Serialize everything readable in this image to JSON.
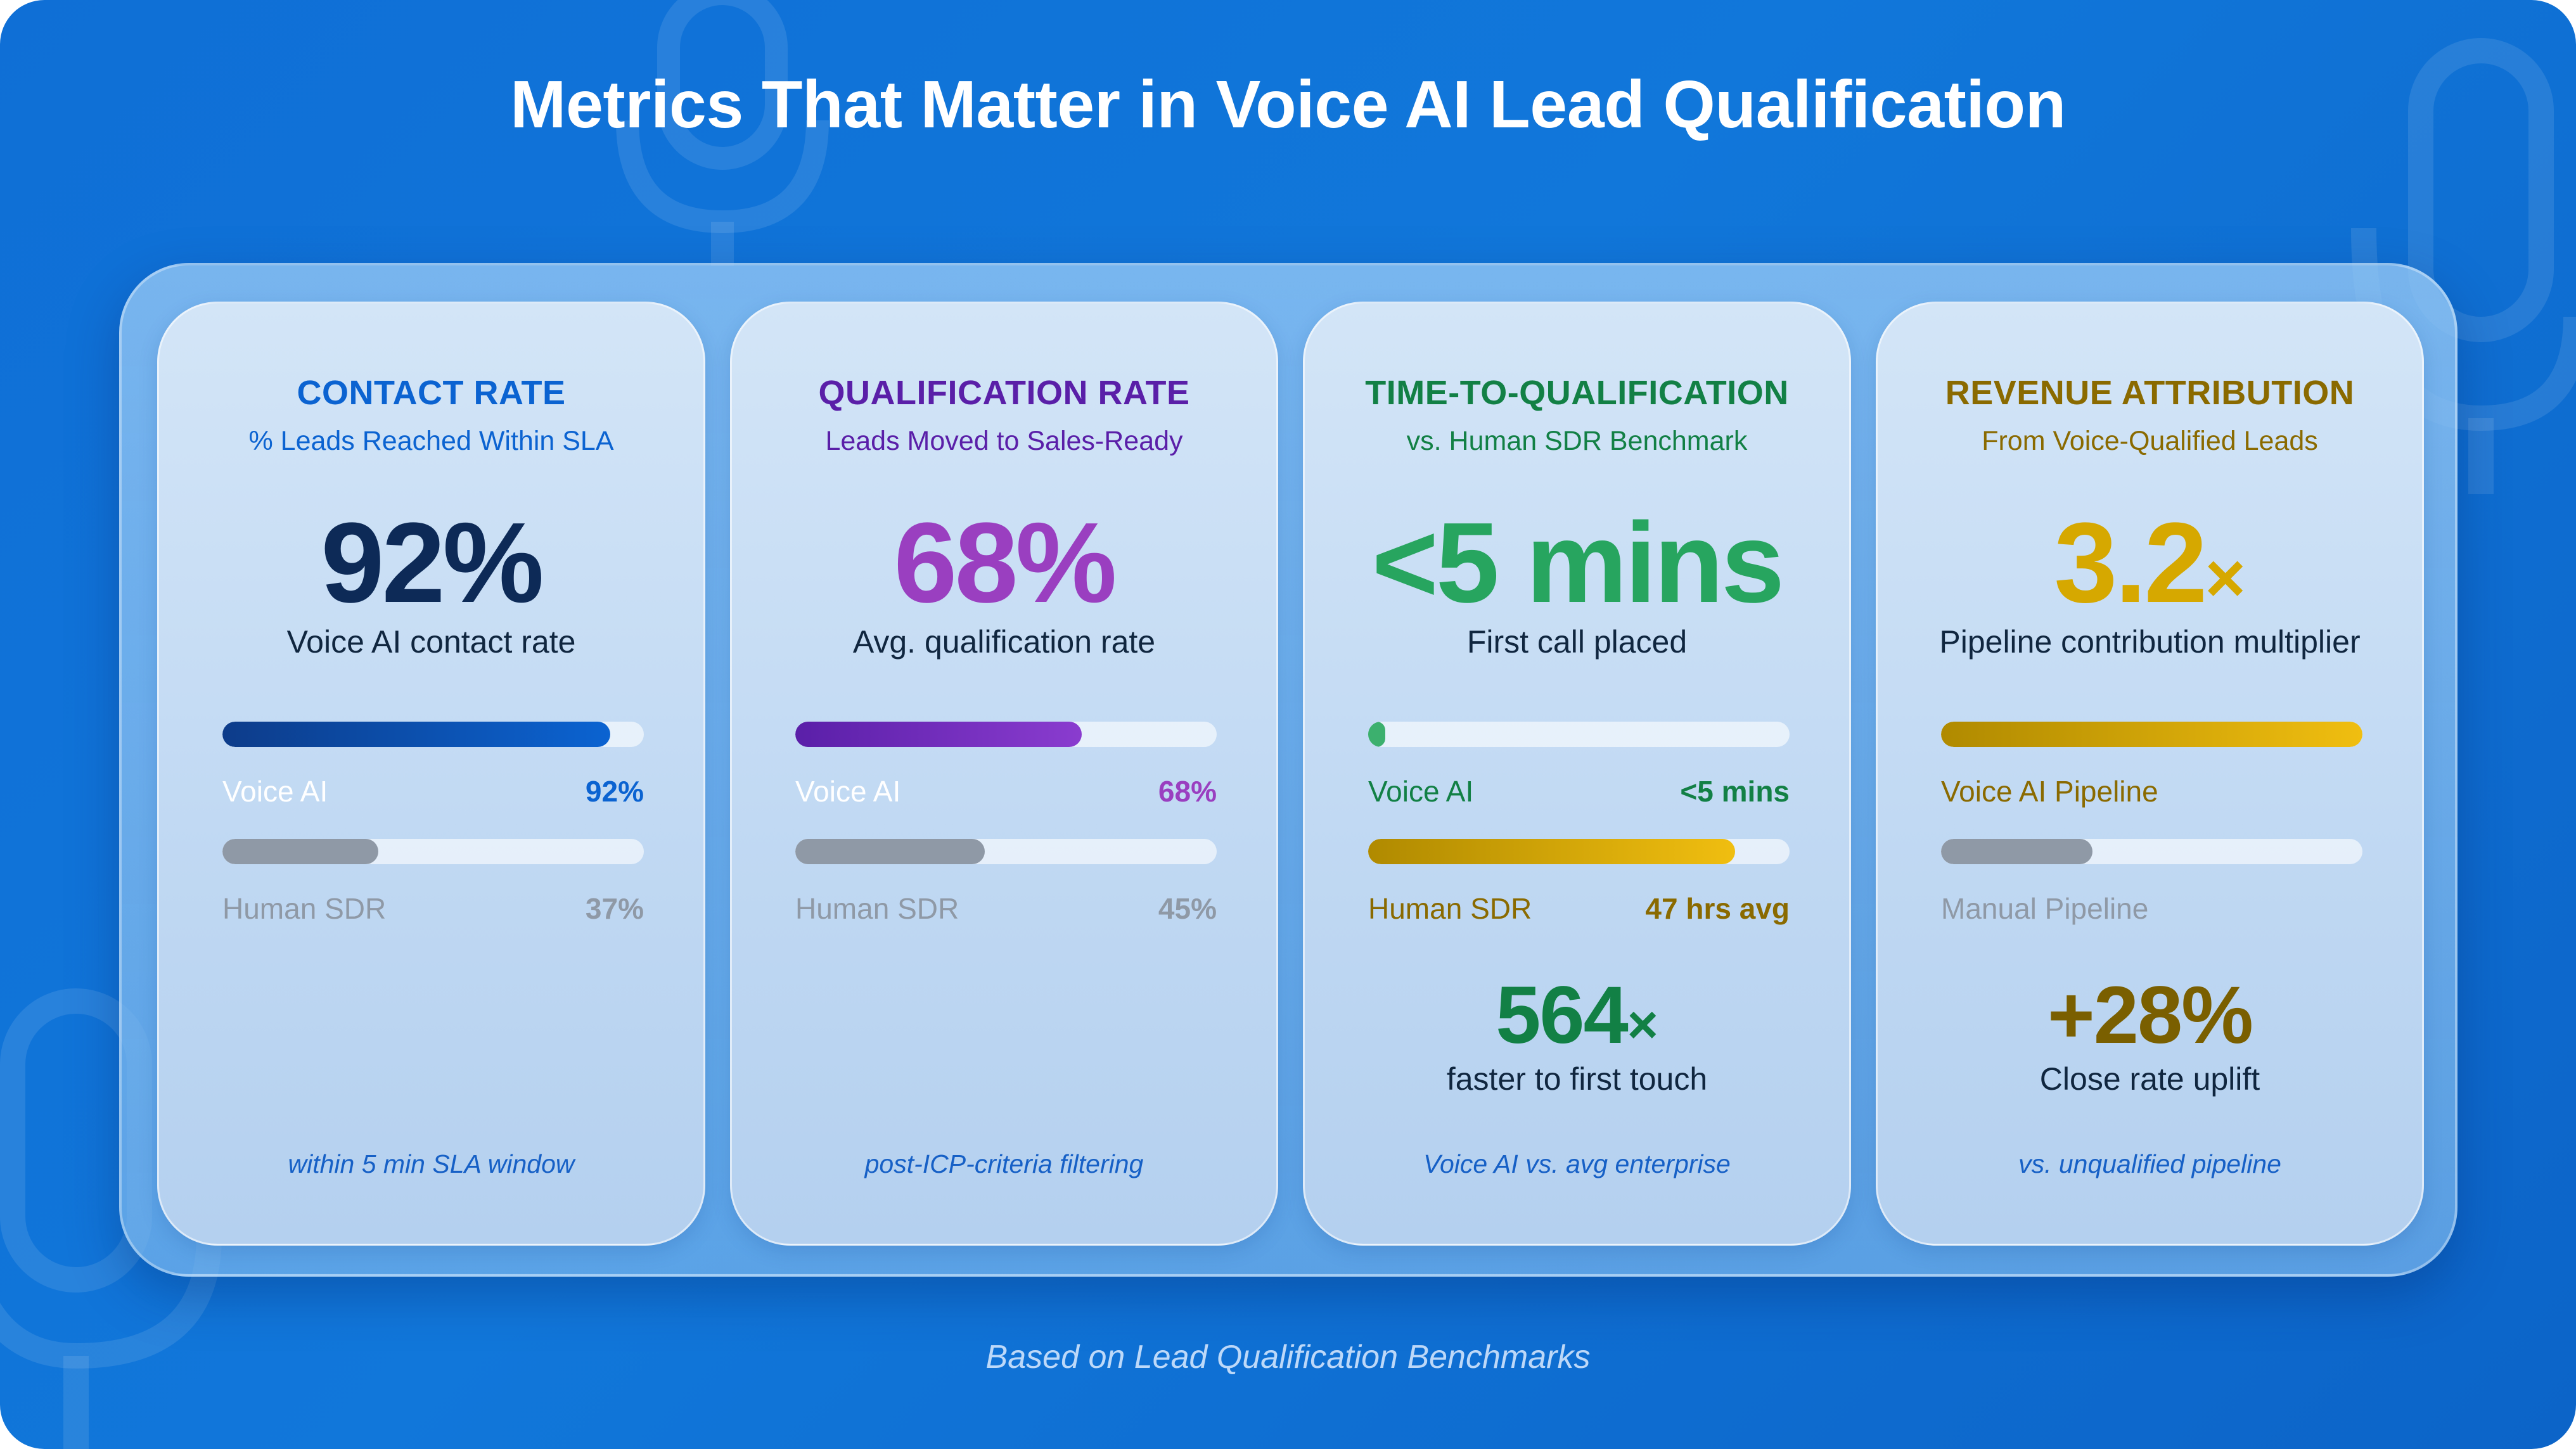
{
  "title": "Metrics That Matter in Voice AI Lead Qualification",
  "source_note": "Based on Lead Qualification Benchmarks",
  "colors": {
    "background": "#1177da",
    "contact": "#0b63d1",
    "contact_big": "#0d2a57",
    "qualification": "#7a2bc0",
    "qualification_big": "#9a3fc0",
    "time": "#128045",
    "time_big": "#27a55f",
    "revenue": "#8a6a00",
    "revenue_big": "#d6a800",
    "human_bar": "#8f99a6",
    "human_text": "#8f99a6"
  },
  "cards": [
    {
      "title": "CONTACT RATE",
      "subtitle": "% Leads Reached Within SLA",
      "big_value": "92%",
      "big_caption": "Voice AI contact rate",
      "bar1": {
        "label": "Voice AI",
        "value": "92%",
        "fill": 0.92
      },
      "bar2": {
        "label": "Human SDR",
        "value": "37%",
        "fill": 0.37
      },
      "footnote": "within 5 min SLA window"
    },
    {
      "title": "QUALIFICATION RATE",
      "subtitle": "Leads Moved to Sales-Ready",
      "big_value": "68%",
      "big_caption": "Avg. qualification rate",
      "bar1": {
        "label": "Voice AI",
        "value": "68%",
        "fill": 0.68
      },
      "bar2": {
        "label": "Human SDR",
        "value": "45%",
        "fill": 0.45
      },
      "footnote": "post-ICP-criteria filtering"
    },
    {
      "title": "TIME-TO-QUALIFICATION",
      "subtitle": "vs. Human SDR Benchmark",
      "big_value": "<5 mins",
      "big_caption": "First call placed",
      "bar1": {
        "label": "Voice AI",
        "value": "<5 mins",
        "fill": 0.04
      },
      "bar2": {
        "label": "Human SDR",
        "value": "47 hrs avg",
        "fill": 0.87
      },
      "extra_value": "564",
      "extra_mult": "×",
      "extra_caption": "faster to first touch",
      "footnote": "Voice AI vs. avg enterprise"
    },
    {
      "title": "REVENUE ATTRIBUTION",
      "subtitle": "From Voice-Qualified Leads",
      "big_value": "3.2",
      "big_mult": "×",
      "big_caption": "Pipeline contribution multiplier",
      "bar1": {
        "label": "Voice AI Pipeline",
        "fill": 1.0
      },
      "bar2": {
        "label": "Manual Pipeline",
        "fill": 0.36
      },
      "extra_value": "+28%",
      "extra_caption": "Close rate uplift",
      "footnote": "vs. unqualified pipeline"
    }
  ]
}
